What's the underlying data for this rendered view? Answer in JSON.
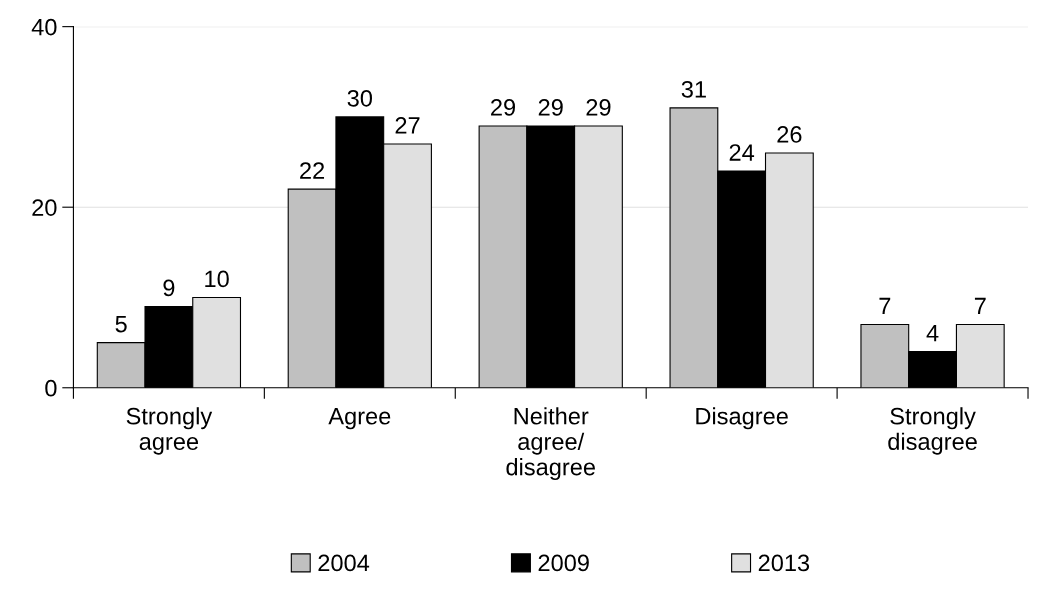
{
  "chart_data": {
    "type": "bar",
    "categories": [
      "Strongly\nagree",
      "Agree",
      "Neither\nagree/\ndisagree",
      "Disagree",
      "Strongly\ndisagree"
    ],
    "series": [
      {
        "name": "2004",
        "color": "#c0c0c0",
        "values": [
          5,
          22,
          29,
          31,
          7
        ]
      },
      {
        "name": "2009",
        "color": "#000000",
        "values": [
          9,
          30,
          29,
          24,
          4
        ]
      },
      {
        "name": "2013",
        "color": "#e0e0e0",
        "values": [
          10,
          27,
          29,
          26,
          7
        ]
      }
    ],
    "ylim": [
      0,
      40
    ],
    "yticks": [
      0,
      20,
      40
    ],
    "grid": "y",
    "legend": "bottom",
    "data_labels": true
  }
}
